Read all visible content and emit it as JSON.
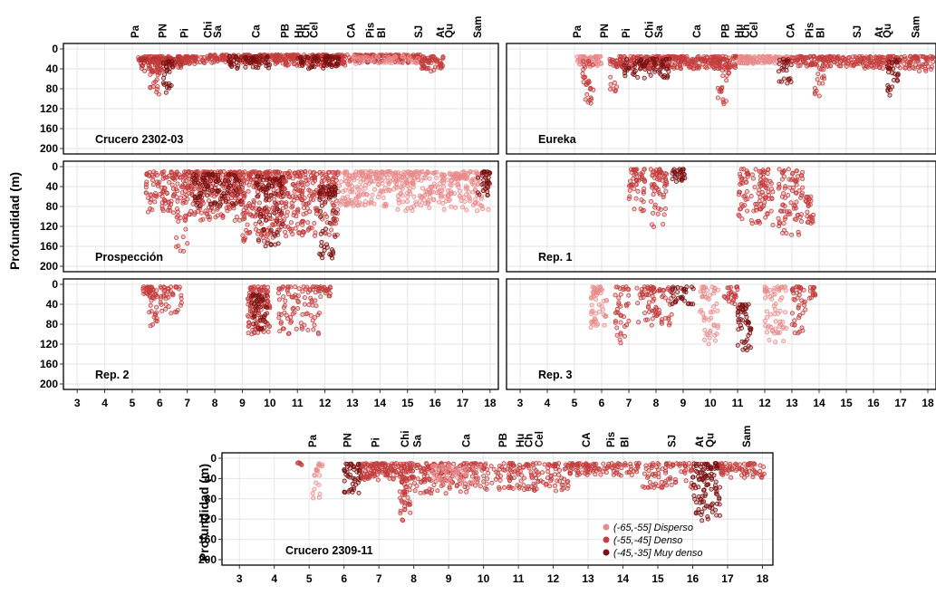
{
  "chart_data": {
    "type": "scatter",
    "ylabel": "Profundidad (m)",
    "xlim": [
      2.5,
      18.3
    ],
    "ylim": [
      0,
      200
    ],
    "x_ticks": [
      3,
      4,
      5,
      6,
      7,
      8,
      9,
      10,
      11,
      12,
      13,
      14,
      15,
      16,
      17,
      18
    ],
    "y_ticks": [
      0,
      40,
      80,
      120,
      160,
      200
    ],
    "y_reversed": true,
    "grid": true,
    "ports": [
      {
        "name": "Pa",
        "x": 5.1
      },
      {
        "name": "PN",
        "x": 6.1
      },
      {
        "name": "Pi",
        "x": 6.9
      },
      {
        "name": "Chi",
        "x": 7.75
      },
      {
        "name": "Sa",
        "x": 8.1
      },
      {
        "name": "Ca",
        "x": 9.5
      },
      {
        "name": "PB",
        "x": 10.55
      },
      {
        "name": "Hu",
        "x": 11.05
      },
      {
        "name": "Ch",
        "x": 11.3
      },
      {
        "name": "Cel",
        "x": 11.6
      },
      {
        "name": "CA",
        "x": 12.95
      },
      {
        "name": "Pis",
        "x": 13.65
      },
      {
        "name": "Bl",
        "x": 14.05
      },
      {
        "name": "SJ",
        "x": 15.4
      },
      {
        "name": "At",
        "x": 16.2
      },
      {
        "name": "Qu",
        "x": 16.5
      },
      {
        "name": "Sam",
        "x": 17.55
      }
    ],
    "legend": {
      "placement": "bottom-right",
      "entries": [
        {
          "label": "(-65,-55] Disperso",
          "color": "#e98a8a"
        },
        {
          "label": "(-55,-45] Denso",
          "color": "#c43e3e"
        },
        {
          "label": "(-45,-35] Muy denso",
          "color": "#7a1010"
        }
      ]
    },
    "panels": [
      {
        "id": "crucero-2302-03",
        "label": "Crucero 2302-03",
        "clusters": [
          {
            "x": [
              5.2,
              7.8
            ],
            "depth": [
              15,
              30
            ],
            "n": 150,
            "c": "#c43e3e"
          },
          {
            "x": [
              5.3,
              6.8
            ],
            "depth": [
              20,
              45
            ],
            "n": 60,
            "c": "#b03030"
          },
          {
            "x": [
              5.6,
              6.0
            ],
            "depth": [
              25,
              95
            ],
            "n": 35,
            "c": "#c43e3e"
          },
          {
            "x": [
              6.1,
              6.5
            ],
            "depth": [
              25,
              90
            ],
            "n": 25,
            "c": "#7a1010"
          },
          {
            "x": [
              7.8,
              10.5
            ],
            "depth": [
              12,
              30
            ],
            "n": 160,
            "c": "#c43e3e"
          },
          {
            "x": [
              8.5,
              10.0
            ],
            "depth": [
              15,
              40
            ],
            "n": 60,
            "c": "#7a1010"
          },
          {
            "x": [
              10.5,
              12.8
            ],
            "depth": [
              12,
              35
            ],
            "n": 160,
            "c": "#c43e3e"
          },
          {
            "x": [
              11.0,
              12.5
            ],
            "depth": [
              15,
              40
            ],
            "n": 70,
            "c": "#7a1010"
          },
          {
            "x": [
              12.8,
              15.5
            ],
            "depth": [
              12,
              28
            ],
            "n": 140,
            "c": "#c43e3e"
          },
          {
            "x": [
              13.0,
              15.5
            ],
            "depth": [
              15,
              30
            ],
            "n": 60,
            "c": "#e98a8a"
          },
          {
            "x": [
              15.5,
              16.3
            ],
            "depth": [
              15,
              45
            ],
            "n": 60,
            "c": "#c43e3e"
          }
        ]
      },
      {
        "id": "eureka",
        "label": "Eureka",
        "clusters": [
          {
            "x": [
              5.1,
              6.0
            ],
            "depth": [
              15,
              35
            ],
            "n": 60,
            "c": "#e98a8a"
          },
          {
            "x": [
              5.3,
              5.7
            ],
            "depth": [
              25,
              110
            ],
            "n": 30,
            "c": "#c43e3e"
          },
          {
            "x": [
              6.3,
              6.6
            ],
            "depth": [
              20,
              85
            ],
            "n": 20,
            "c": "#c43e3e"
          },
          {
            "x": [
              6.5,
              9.0
            ],
            "depth": [
              15,
              40
            ],
            "n": 170,
            "c": "#c43e3e"
          },
          {
            "x": [
              6.8,
              8.5
            ],
            "depth": [
              20,
              60
            ],
            "n": 70,
            "c": "#7a1010"
          },
          {
            "x": [
              9.0,
              11.0
            ],
            "depth": [
              15,
              40
            ],
            "n": 130,
            "c": "#c43e3e"
          },
          {
            "x": [
              10.2,
              10.7
            ],
            "depth": [
              20,
              115
            ],
            "n": 40,
            "c": "#c43e3e"
          },
          {
            "x": [
              11.0,
              13.0
            ],
            "depth": [
              15,
              30
            ],
            "n": 110,
            "c": "#e98a8a"
          },
          {
            "x": [
              12.5,
              13.0
            ],
            "depth": [
              20,
              75
            ],
            "n": 25,
            "c": "#7a1010"
          },
          {
            "x": [
              13.0,
              15.5
            ],
            "depth": [
              15,
              35
            ],
            "n": 120,
            "c": "#c43e3e"
          },
          {
            "x": [
              13.8,
              14.2
            ],
            "depth": [
              20,
              100
            ],
            "n": 25,
            "c": "#c43e3e"
          },
          {
            "x": [
              15.5,
              17.5
            ],
            "depth": [
              15,
              40
            ],
            "n": 110,
            "c": "#c43e3e"
          },
          {
            "x": [
              16.5,
              17.0
            ],
            "depth": [
              20,
              100
            ],
            "n": 30,
            "c": "#7a1010"
          },
          {
            "x": [
              17.5,
              18.2
            ],
            "depth": [
              15,
              45
            ],
            "n": 40,
            "c": "#c43e3e"
          }
        ]
      },
      {
        "id": "prospeccion",
        "label": "Prospección",
        "clusters": [
          {
            "x": [
              5.5,
              6.5
            ],
            "depth": [
              10,
              95
            ],
            "n": 80,
            "c": "#c43e3e"
          },
          {
            "x": [
              6.5,
              7.0
            ],
            "depth": [
              10,
              170
            ],
            "n": 60,
            "c": "#c43e3e"
          },
          {
            "x": [
              7.0,
              9.0
            ],
            "depth": [
              10,
              110
            ],
            "n": 230,
            "c": "#c43e3e"
          },
          {
            "x": [
              7.2,
              9.0
            ],
            "depth": [
              15,
              80
            ],
            "n": 100,
            "c": "#7a1010"
          },
          {
            "x": [
              9.0,
              10.5
            ],
            "depth": [
              10,
              150
            ],
            "n": 220,
            "c": "#c43e3e"
          },
          {
            "x": [
              9.5,
              10.5
            ],
            "depth": [
              20,
              160
            ],
            "n": 80,
            "c": "#7a1010"
          },
          {
            "x": [
              10.5,
              12.5
            ],
            "depth": [
              10,
              140
            ],
            "n": 230,
            "c": "#c43e3e"
          },
          {
            "x": [
              11.8,
              12.4
            ],
            "depth": [
              40,
              190
            ],
            "n": 60,
            "c": "#7a1010"
          },
          {
            "x": [
              12.5,
              14.5
            ],
            "depth": [
              10,
              80
            ],
            "n": 160,
            "c": "#e98a8a"
          },
          {
            "x": [
              14.5,
              16.5
            ],
            "depth": [
              10,
              90
            ],
            "n": 160,
            "c": "#e98a8a"
          },
          {
            "x": [
              16.5,
              18.0
            ],
            "depth": [
              10,
              90
            ],
            "n": 120,
            "c": "#e98a8a"
          },
          {
            "x": [
              17.5,
              18.0
            ],
            "depth": [
              10,
              60
            ],
            "n": 30,
            "c": "#7a1010"
          }
        ]
      },
      {
        "id": "rep-1",
        "label": "Rep. 1",
        "clusters": [
          {
            "x": [
              7.0,
              7.6
            ],
            "depth": [
              5,
              90
            ],
            "n": 50,
            "c": "#c43e3e"
          },
          {
            "x": [
              7.8,
              8.4
            ],
            "depth": [
              5,
              125
            ],
            "n": 60,
            "c": "#c43e3e"
          },
          {
            "x": [
              8.6,
              9.1
            ],
            "depth": [
              5,
              30
            ],
            "n": 30,
            "c": "#7a1010"
          },
          {
            "x": [
              11.0,
              11.4
            ],
            "depth": [
              5,
              115
            ],
            "n": 35,
            "c": "#c43e3e"
          },
          {
            "x": [
              11.5,
              12.3
            ],
            "depth": [
              5,
              120
            ],
            "n": 70,
            "c": "#c43e3e"
          },
          {
            "x": [
              12.5,
              13.4
            ],
            "depth": [
              5,
              140
            ],
            "n": 80,
            "c": "#c43e3e"
          },
          {
            "x": [
              13.5,
              13.8
            ],
            "depth": [
              60,
              115
            ],
            "n": 25,
            "c": "#c43e3e"
          }
        ]
      },
      {
        "id": "rep-2",
        "label": "Rep. 2",
        "clusters": [
          {
            "x": [
              5.3,
              5.7
            ],
            "depth": [
              5,
              25
            ],
            "n": 20,
            "c": "#c43e3e"
          },
          {
            "x": [
              5.6,
              5.9
            ],
            "depth": [
              5,
              100
            ],
            "n": 30,
            "c": "#c43e3e"
          },
          {
            "x": [
              6.0,
              6.8
            ],
            "depth": [
              5,
              60
            ],
            "n": 40,
            "c": "#c43e3e"
          },
          {
            "x": [
              9.2,
              10.0
            ],
            "depth": [
              5,
              100
            ],
            "n": 120,
            "c": "#c43e3e"
          },
          {
            "x": [
              9.3,
              9.9
            ],
            "depth": [
              20,
              90
            ],
            "n": 40,
            "c": "#7a1010"
          },
          {
            "x": [
              10.3,
              11.8
            ],
            "depth": [
              5,
              100
            ],
            "n": 90,
            "c": "#c43e3e"
          },
          {
            "x": [
              11.8,
              12.2
            ],
            "depth": [
              5,
              30
            ],
            "n": 20,
            "c": "#c43e3e"
          }
        ]
      },
      {
        "id": "rep-3",
        "label": "Rep. 3",
        "clusters": [
          {
            "x": [
              5.6,
              6.2
            ],
            "depth": [
              5,
              90
            ],
            "n": 50,
            "c": "#e98a8a"
          },
          {
            "x": [
              6.5,
              7.0
            ],
            "depth": [
              5,
              120
            ],
            "n": 40,
            "c": "#c43e3e"
          },
          {
            "x": [
              7.3,
              8.6
            ],
            "depth": [
              5,
              85
            ],
            "n": 80,
            "c": "#c43e3e"
          },
          {
            "x": [
              8.6,
              9.4
            ],
            "depth": [
              5,
              40
            ],
            "n": 30,
            "c": "#7a1010"
          },
          {
            "x": [
              9.6,
              10.3
            ],
            "depth": [
              5,
              120
            ],
            "n": 50,
            "c": "#e98a8a"
          },
          {
            "x": [
              10.5,
              11.0
            ],
            "depth": [
              5,
              40
            ],
            "n": 25,
            "c": "#c43e3e"
          },
          {
            "x": [
              11.0,
              11.5
            ],
            "depth": [
              40,
              140
            ],
            "n": 50,
            "c": "#7a1010"
          },
          {
            "x": [
              12.0,
              12.8
            ],
            "depth": [
              5,
              120
            ],
            "n": 60,
            "c": "#e98a8a"
          },
          {
            "x": [
              13.0,
              13.5
            ],
            "depth": [
              5,
              100
            ],
            "n": 40,
            "c": "#c43e3e"
          },
          {
            "x": [
              13.6,
              13.9
            ],
            "depth": [
              5,
              30
            ],
            "n": 15,
            "c": "#c43e3e"
          }
        ]
      },
      {
        "id": "crucero-2309-11",
        "label": "Crucero 2309-11",
        "clusters": [
          {
            "x": [
              4.6,
              4.8
            ],
            "depth": [
              8,
              14
            ],
            "n": 6,
            "c": "#c43e3e"
          },
          {
            "x": [
              5.1,
              5.4
            ],
            "depth": [
              10,
              80
            ],
            "n": 20,
            "c": "#e98a8a"
          },
          {
            "x": [
              6.0,
              6.5
            ],
            "depth": [
              10,
              75
            ],
            "n": 50,
            "c": "#7a1010"
          },
          {
            "x": [
              6.5,
              8.0
            ],
            "depth": [
              10,
              45
            ],
            "n": 150,
            "c": "#c43e3e"
          },
          {
            "x": [
              7.6,
              7.9
            ],
            "depth": [
              40,
              125
            ],
            "n": 40,
            "c": "#c43e3e"
          },
          {
            "x": [
              8.0,
              10.0
            ],
            "depth": [
              10,
              70
            ],
            "n": 160,
            "c": "#c43e3e"
          },
          {
            "x": [
              8.5,
              10.0
            ],
            "depth": [
              15,
              50
            ],
            "n": 60,
            "c": "#e98a8a"
          },
          {
            "x": [
              10.0,
              12.5
            ],
            "depth": [
              10,
              65
            ],
            "n": 160,
            "c": "#c43e3e"
          },
          {
            "x": [
              12.5,
              14.5
            ],
            "depth": [
              10,
              35
            ],
            "n": 100,
            "c": "#c43e3e"
          },
          {
            "x": [
              14.5,
              16.0
            ],
            "depth": [
              10,
              60
            ],
            "n": 80,
            "c": "#c43e3e"
          },
          {
            "x": [
              16.0,
              16.8
            ],
            "depth": [
              10,
              125
            ],
            "n": 110,
            "c": "#7a1010"
          },
          {
            "x": [
              16.8,
              18.1
            ],
            "depth": [
              10,
              40
            ],
            "n": 70,
            "c": "#c43e3e"
          }
        ]
      }
    ]
  }
}
